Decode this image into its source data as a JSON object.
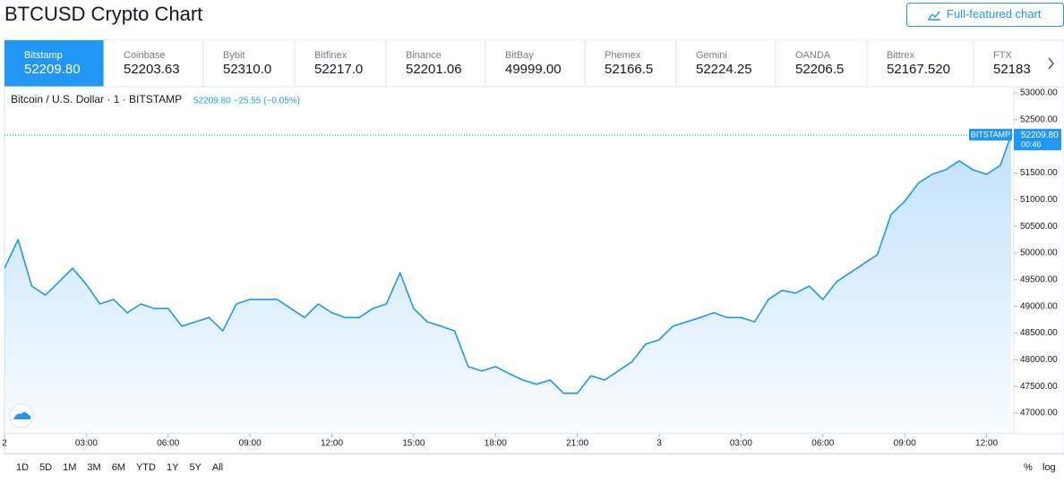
{
  "header": {
    "title": "BTCUSD Crypto Chart",
    "button": "Full-featured chart"
  },
  "tabs": [
    {
      "name": "Bitstamp",
      "price": "52209.80"
    },
    {
      "name": "Coinbase",
      "price": "52203.63"
    },
    {
      "name": "Bybit",
      "price": "52310.0"
    },
    {
      "name": "Bitfinex",
      "price": "52217.0"
    },
    {
      "name": "Binance",
      "price": "52201.06"
    },
    {
      "name": "BitBay",
      "price": "49999.00"
    },
    {
      "name": "Phemex",
      "price": "52166.5"
    },
    {
      "name": "Gemini",
      "price": "52224.25"
    },
    {
      "name": "OANDA",
      "price": "52206.5"
    },
    {
      "name": "Bittrex",
      "price": "52167.520"
    },
    {
      "name": "FTX",
      "price": "52183"
    }
  ],
  "chart_data": {
    "type": "line",
    "legend": "Bitcoin / U.S. Dollar · 1 · BITSTAMP",
    "quote": "52209.80 −25.55 (−0.05%)",
    "price_tag": {
      "exchange": "BITSTAMP",
      "price": "52209.80",
      "countdown": "00:46"
    },
    "color": "#2196f3",
    "x": [
      0,
      0.5,
      1,
      1.5,
      2,
      2.5,
      3,
      3.5,
      4,
      4.5,
      5,
      5.5,
      6,
      6.5,
      7,
      7.5,
      8,
      8.5,
      9,
      9.5,
      10,
      10.5,
      11,
      11.5,
      12,
      12.5,
      13,
      13.5,
      14,
      14.5,
      15,
      15.5,
      16,
      16.5,
      17,
      17.5,
      18,
      18.5,
      19,
      19.5,
      20,
      20.5,
      21,
      21.5,
      22,
      22.5,
      23,
      23.5,
      24,
      24.5,
      25,
      25.5,
      26,
      26.5,
      27,
      27.5,
      28,
      28.5,
      29,
      29.5,
      30,
      30.5,
      31,
      31.5,
      32,
      32.5,
      33,
      33.5,
      34,
      34.5,
      35,
      35.5,
      36,
      36.5,
      36.9
    ],
    "values": [
      49715,
      50250,
      49380,
      49210,
      49460,
      49715,
      49410,
      49045,
      49130,
      48880,
      49045,
      48960,
      48960,
      48630,
      48710,
      48790,
      48540,
      49045,
      49130,
      49130,
      49130,
      48960,
      48790,
      49045,
      48880,
      48790,
      48790,
      48960,
      49045,
      49630,
      48960,
      48710,
      48630,
      48540,
      47870,
      47790,
      47870,
      47740,
      47620,
      47540,
      47620,
      47370,
      47370,
      47700,
      47620,
      47790,
      47960,
      48290,
      48375,
      48630,
      48710,
      48790,
      48880,
      48790,
      48790,
      48710,
      49130,
      49300,
      49250,
      49380,
      49130,
      49460,
      49630,
      49800,
      49970,
      50720,
      50970,
      51310,
      51475,
      51560,
      51730,
      51560,
      51475,
      51640,
      52209.8
    ],
    "xlim": [
      0,
      37
    ],
    "xticks": [
      {
        "value": 0,
        "label": "2"
      },
      {
        "value": 3,
        "label": "03:00"
      },
      {
        "value": 6,
        "label": "06:00"
      },
      {
        "value": 9,
        "label": "09:00"
      },
      {
        "value": 12,
        "label": "12:00"
      },
      {
        "value": 15,
        "label": "15:00"
      },
      {
        "value": 18,
        "label": "18:00"
      },
      {
        "value": 21,
        "label": "21:00"
      },
      {
        "value": 24,
        "label": "3"
      },
      {
        "value": 27,
        "label": "03:00"
      },
      {
        "value": 30,
        "label": "06:00"
      },
      {
        "value": 33,
        "label": "09:00"
      },
      {
        "value": 36,
        "label": "12:00"
      }
    ],
    "ylim": [
      46615,
      53100
    ],
    "yticks": [
      {
        "value": 47000,
        "label": "47000.00"
      },
      {
        "value": 47500,
        "label": "47500.00"
      },
      {
        "value": 48000,
        "label": "48000.00"
      },
      {
        "value": 48500,
        "label": "48500.00"
      },
      {
        "value": 49000,
        "label": "49000.00"
      },
      {
        "value": 49500,
        "label": "49500.00"
      },
      {
        "value": 50000,
        "label": "50000.00"
      },
      {
        "value": 50500,
        "label": "50500.00"
      },
      {
        "value": 51000,
        "label": "51000.00"
      },
      {
        "value": 51500,
        "label": "51500.00"
      },
      {
        "value": 52000,
        "label": "52000.00"
      },
      {
        "value": 52500,
        "label": "52500.00"
      },
      {
        "value": 53000,
        "label": "53000.00"
      }
    ],
    "last_value": 52209.8
  },
  "footer": {
    "ranges": [
      "1D",
      "5D",
      "1M",
      "3M",
      "6M",
      "YTD",
      "1Y",
      "5Y",
      "All"
    ],
    "scale_options": [
      "%",
      "log"
    ]
  }
}
